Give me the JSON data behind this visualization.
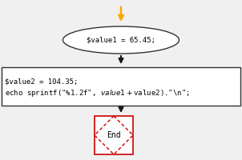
{
  "bg_color": "#f0f0f0",
  "arrow_color_top": "#ffa500",
  "arrow_color_main": "#1a1a1a",
  "ellipse_text": "$value1 = 65.45;",
  "ellipse_color": "#ffffff",
  "ellipse_edge": "#333333",
  "rect_text_line1": "$value2 = 104.35;",
  "rect_text_line2": "echo sprintf(\"%1.2f\", $value1+$value2).\"\\n\";",
  "rect_color": "#ffffff",
  "rect_edge": "#333333",
  "diamond_text": "End",
  "diamond_color": "#ffffff",
  "diamond_edge": "#cc0000",
  "square_edge": "#cc0000",
  "font_family": "monospace",
  "font_size": 6.5,
  "fig_width": 3.02,
  "fig_height": 2.0,
  "dpi": 100
}
